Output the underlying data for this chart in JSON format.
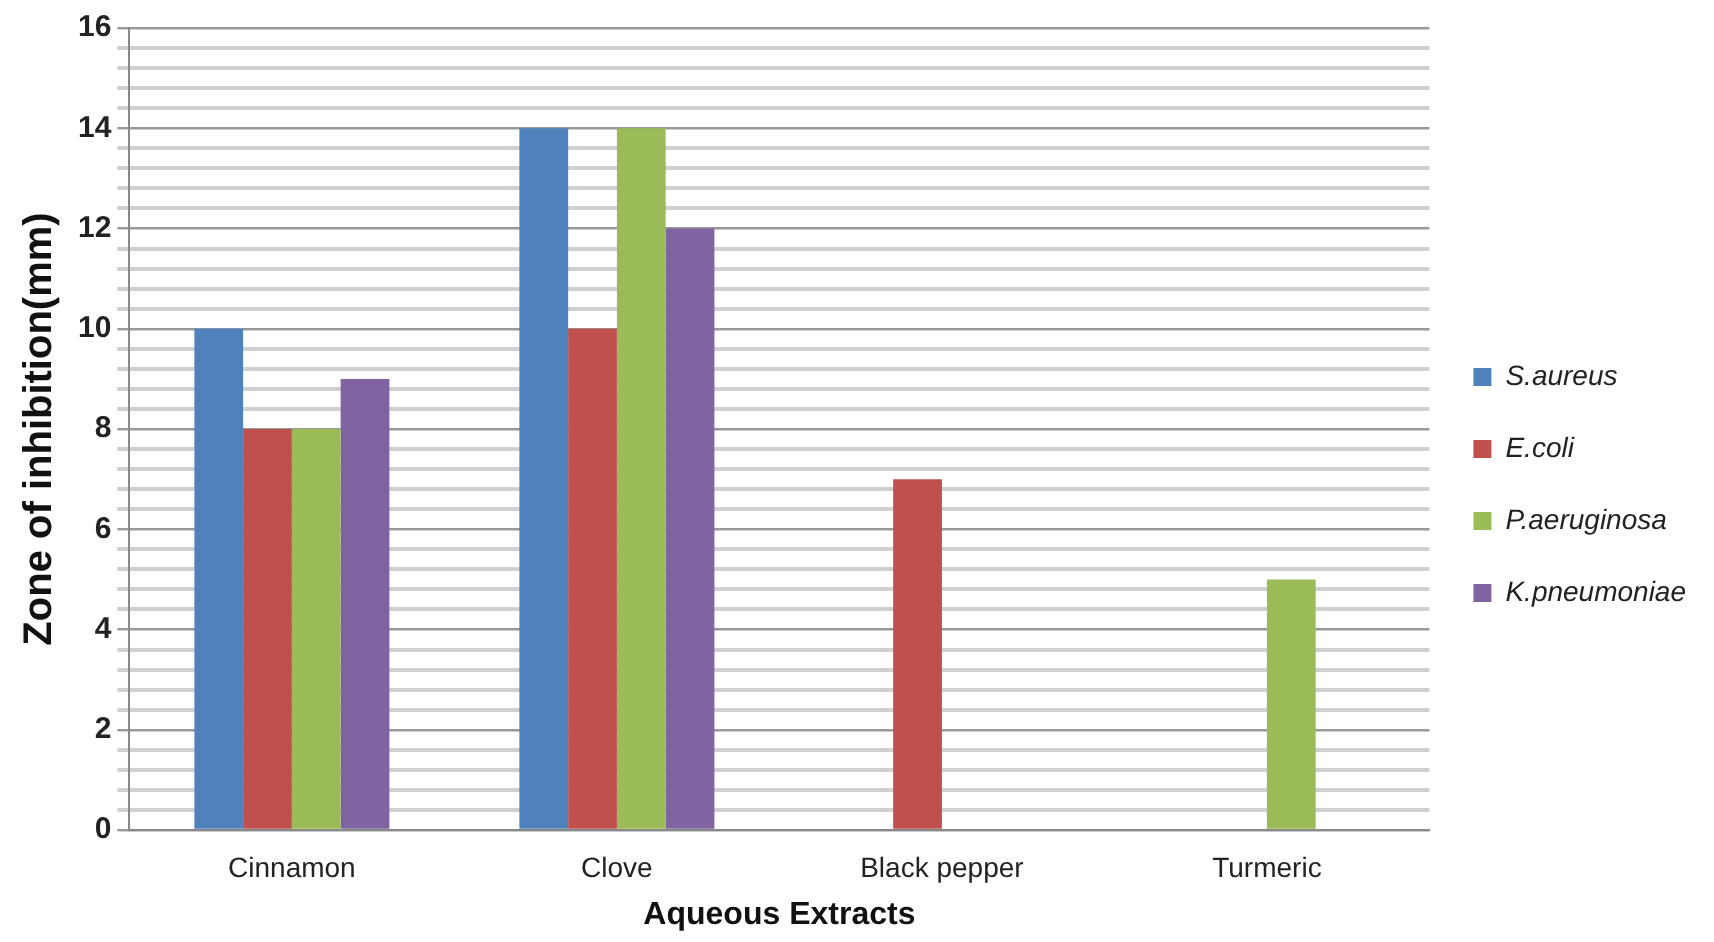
{
  "chart_data": {
    "type": "bar",
    "xlabel": "Aqueous Extracts",
    "ylabel": "Zone of inhibition(mm)",
    "categories": [
      "Cinnamon",
      "Clove",
      "Black pepper",
      "Turmeric"
    ],
    "series": [
      {
        "name": "S.aureus",
        "color": "#4f81bd",
        "values": [
          10,
          14,
          0,
          0
        ]
      },
      {
        "name": "E.coli",
        "color": "#c0504d",
        "values": [
          8,
          10,
          7,
          0
        ]
      },
      {
        "name": "P.aeruginosa",
        "color": "#9bbb59",
        "values": [
          8,
          14,
          0,
          5
        ]
      },
      {
        "name": "K.pneumoniae",
        "color": "#8064a2",
        "values": [
          9,
          12,
          0,
          0
        ]
      }
    ],
    "ylim": [
      0,
      16
    ],
    "yticks": [
      0,
      {
        "value": 0.4,
        "label": null
      },
      {
        "value": 0.8,
        "label": null
      },
      {
        "value": 1.2,
        "label": null
      },
      {
        "value": 1.6,
        "label": null
      },
      2,
      {
        "value": 2.4,
        "label": null
      },
      {
        "value": 2.8,
        "label": null
      },
      {
        "value": 3.2,
        "label": null
      },
      {
        "value": 3.6,
        "label": null
      },
      4,
      {
        "value": 4.4,
        "label": null
      },
      {
        "value": 4.8,
        "label": null
      },
      {
        "value": 5.2,
        "label": null
      },
      {
        "value": 5.6,
        "label": null
      },
      6,
      {
        "value": 6.4,
        "label": null
      },
      {
        "value": 6.8,
        "label": null
      },
      {
        "value": 7.2,
        "label": null
      },
      {
        "value": 7.6,
        "label": null
      },
      8,
      {
        "value": 8.4,
        "label": null
      },
      {
        "value": 8.8,
        "label": null
      },
      {
        "value": 9.2,
        "label": null
      },
      {
        "value": 9.6,
        "label": null
      },
      10,
      {
        "value": 10.4,
        "label": null
      },
      {
        "value": 10.8,
        "label": null
      },
      {
        "value": 11.2,
        "label": null
      },
      {
        "value": 11.6,
        "label": null
      },
      12,
      {
        "value": 12.4,
        "label": null
      },
      {
        "value": 12.8,
        "label": null
      },
      {
        "value": 13.2,
        "label": null
      },
      {
        "value": 13.6,
        "label": null
      },
      14,
      {
        "value": 14.4,
        "label": null
      },
      {
        "value": 14.8,
        "label": null
      },
      {
        "value": 15.2,
        "label": null
      },
      {
        "value": 15.6,
        "label": null
      },
      16
    ],
    "grid": "y",
    "legend": "right"
  }
}
